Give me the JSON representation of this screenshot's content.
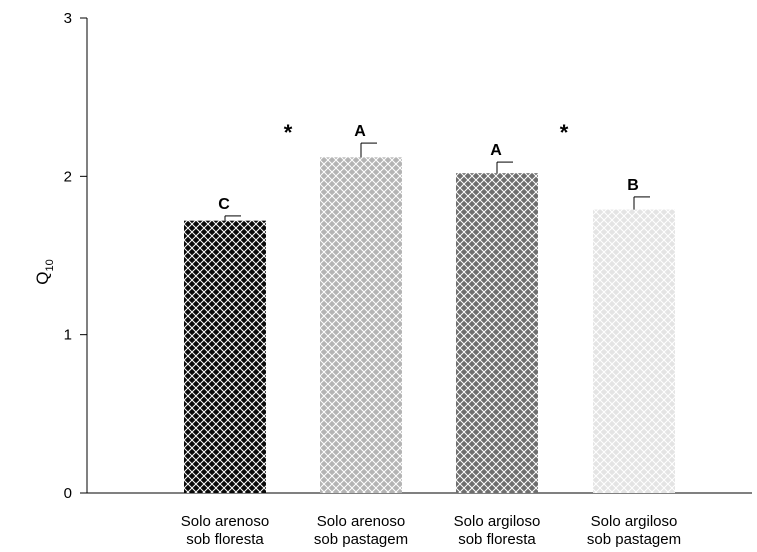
{
  "chart_data": {
    "type": "bar",
    "categories": [
      [
        "Solo arenoso",
        "sob floresta"
      ],
      [
        "Solo arenoso",
        "sob pastagem"
      ],
      [
        "Solo argiloso",
        "sob floresta"
      ],
      [
        "Solo argiloso",
        "sob pastagem"
      ]
    ],
    "values": [
      1.72,
      2.12,
      2.02,
      1.79
    ],
    "errors": [
      0.03,
      0.09,
      0.07,
      0.08
    ],
    "data_labels": [
      "C",
      "A",
      "A",
      "B"
    ],
    "bar_colors": [
      "#0a0a0a",
      "#b4b4b4",
      "#6e6e6e",
      "#e4e4e4"
    ],
    "bar_pattern": "crosshatch",
    "ylabel": "Q",
    "ylabel_subscript": "10",
    "ylim": [
      0,
      3
    ],
    "yticks": [
      "0",
      "1",
      "2",
      "3"
    ],
    "grid": false,
    "annotations": [
      "*",
      "*"
    ]
  }
}
